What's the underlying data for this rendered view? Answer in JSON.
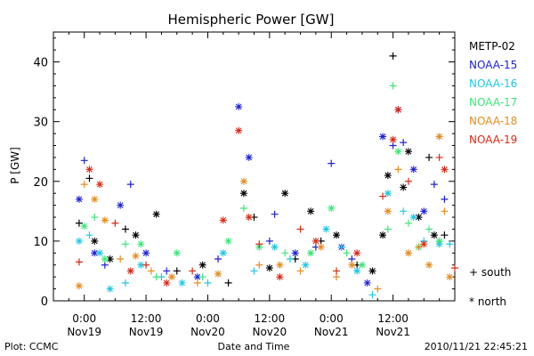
{
  "chart_data": {
    "type": "scatter",
    "title": "Hemispheric Power [GW]",
    "xlabel": "Date and Time",
    "ylabel": "P [GW]",
    "ylim": [
      0,
      45
    ],
    "yticks": [
      0,
      10,
      20,
      30,
      40
    ],
    "xlim_hours": [
      -6,
      72
    ],
    "xticks": [
      {
        "hour": 0,
        "time": "0:00",
        "date": "Nov19"
      },
      {
        "hour": 12,
        "time": "12:00",
        "date": "Nov19"
      },
      {
        "hour": 24,
        "time": "0:00",
        "date": "Nov20"
      },
      {
        "hour": 36,
        "time": "12:00",
        "date": "Nov20"
      },
      {
        "hour": 48,
        "time": "0:00",
        "date": "Nov21"
      },
      {
        "hour": 60,
        "time": "12:00",
        "date": "Nov21"
      }
    ],
    "legend": {
      "placement": "right",
      "marker_plus": "+ south",
      "marker_star": "* north"
    },
    "series": [
      {
        "name": "METP-02",
        "color": "#000000",
        "points": [
          [
            -1,
            13,
            "s"
          ],
          [
            1,
            20.5,
            "s"
          ],
          [
            2,
            10,
            "n"
          ],
          [
            5,
            7,
            "n"
          ],
          [
            8,
            12,
            "s"
          ],
          [
            10,
            11,
            "n"
          ],
          [
            14,
            14.5,
            "n"
          ],
          [
            18,
            5,
            "s"
          ],
          [
            23,
            6,
            "n"
          ],
          [
            28,
            3,
            "s"
          ],
          [
            31,
            18,
            "n"
          ],
          [
            33,
            14,
            "s"
          ],
          [
            36,
            5.5,
            "n"
          ],
          [
            39,
            18,
            "n"
          ],
          [
            41,
            7,
            "s"
          ],
          [
            44,
            15,
            "n"
          ],
          [
            46,
            10,
            "s"
          ],
          [
            49,
            11,
            "n"
          ],
          [
            53,
            6,
            "s"
          ],
          [
            56,
            5,
            "n"
          ],
          [
            58,
            11,
            "n"
          ],
          [
            59,
            21,
            "n"
          ],
          [
            60,
            41,
            "s"
          ],
          [
            62,
            19,
            "n"
          ],
          [
            63,
            25,
            "n"
          ],
          [
            65,
            14,
            "n"
          ],
          [
            67,
            24,
            "s"
          ],
          [
            68,
            11,
            "n"
          ],
          [
            70,
            11,
            "s"
          ]
        ]
      },
      {
        "name": "NOAA-15",
        "color": "#1e22d8",
        "points": [
          [
            -1,
            17,
            "n"
          ],
          [
            0,
            23.5,
            "s"
          ],
          [
            2,
            8,
            "n"
          ],
          [
            4,
            6,
            "s"
          ],
          [
            7,
            16,
            "n"
          ],
          [
            9,
            19.5,
            "s"
          ],
          [
            12,
            8,
            "n"
          ],
          [
            16,
            5,
            "s"
          ],
          [
            22,
            4,
            "n"
          ],
          [
            26,
            7,
            "s"
          ],
          [
            30,
            32.5,
            "n"
          ],
          [
            32,
            24,
            "n"
          ],
          [
            36,
            10,
            "s"
          ],
          [
            37,
            14.5,
            "s"
          ],
          [
            41,
            8,
            "n"
          ],
          [
            45,
            9,
            "s"
          ],
          [
            48,
            23,
            "s"
          ],
          [
            50,
            9,
            "n"
          ],
          [
            52,
            7,
            "s"
          ],
          [
            55,
            3,
            "n"
          ],
          [
            58,
            27.5,
            "n"
          ],
          [
            60,
            26,
            "s"
          ],
          [
            61,
            32,
            "n"
          ],
          [
            62,
            26.5,
            "s"
          ],
          [
            64,
            22,
            "n"
          ],
          [
            66,
            15,
            "n"
          ],
          [
            68,
            19.5,
            "s"
          ],
          [
            70,
            17,
            "s"
          ]
        ]
      },
      {
        "name": "NOAA-16",
        "color": "#1ec8e6",
        "points": [
          [
            -1,
            10,
            "n"
          ],
          [
            1,
            11,
            "s"
          ],
          [
            3,
            8,
            "n"
          ],
          [
            5,
            2,
            "n"
          ],
          [
            8,
            3,
            "s"
          ],
          [
            11,
            6,
            "n"
          ],
          [
            15,
            4,
            "s"
          ],
          [
            19,
            3,
            "n"
          ],
          [
            24,
            3,
            "s"
          ],
          [
            27,
            8,
            "n"
          ],
          [
            33,
            5,
            "s"
          ],
          [
            37,
            9,
            "n"
          ],
          [
            40,
            7,
            "s"
          ],
          [
            43,
            6,
            "n"
          ],
          [
            47,
            12,
            "n"
          ],
          [
            50,
            9,
            "s"
          ],
          [
            53,
            5,
            "n"
          ],
          [
            56,
            1,
            "s"
          ],
          [
            59,
            18,
            "n"
          ],
          [
            62,
            15,
            "s"
          ],
          [
            64,
            14,
            "n"
          ],
          [
            66,
            10,
            "s"
          ],
          [
            69,
            9.5,
            "n"
          ],
          [
            71,
            9.5,
            "s"
          ]
        ]
      },
      {
        "name": "NOAA-17",
        "color": "#3ce678",
        "points": [
          [
            0,
            12.5,
            "n"
          ],
          [
            2,
            14,
            "s"
          ],
          [
            4,
            7,
            "n"
          ],
          [
            8,
            9.5,
            "s"
          ],
          [
            11,
            9.5,
            "n"
          ],
          [
            14,
            4,
            "s"
          ],
          [
            18,
            8,
            "n"
          ],
          [
            23,
            4,
            "s"
          ],
          [
            28,
            10,
            "n"
          ],
          [
            31,
            15.5,
            "s"
          ],
          [
            34,
            9,
            "n"
          ],
          [
            39,
            8,
            "s"
          ],
          [
            44,
            8,
            "n"
          ],
          [
            48,
            15.5,
            "n"
          ],
          [
            51,
            8,
            "s"
          ],
          [
            54,
            6,
            "n"
          ],
          [
            59,
            12,
            "s"
          ],
          [
            60,
            36,
            "s"
          ],
          [
            61,
            25,
            "n"
          ],
          [
            63,
            13,
            "s"
          ],
          [
            65,
            9,
            "n"
          ],
          [
            67,
            12,
            "s"
          ],
          [
            69,
            10,
            "n"
          ]
        ]
      },
      {
        "name": "NOAA-18",
        "color": "#e68c1e",
        "points": [
          [
            -1,
            2.5,
            "n"
          ],
          [
            0,
            19.5,
            "s"
          ],
          [
            2,
            17,
            "n"
          ],
          [
            4,
            13.5,
            "n"
          ],
          [
            7,
            7,
            "s"
          ],
          [
            10,
            7.5,
            "n"
          ],
          [
            13,
            5,
            "s"
          ],
          [
            17,
            4,
            "n"
          ],
          [
            22,
            3,
            "s"
          ],
          [
            26,
            4.5,
            "n"
          ],
          [
            31,
            20,
            "n"
          ],
          [
            34,
            6,
            "s"
          ],
          [
            38,
            6,
            "n"
          ],
          [
            42,
            5,
            "s"
          ],
          [
            46,
            9,
            "n"
          ],
          [
            49,
            4,
            "s"
          ],
          [
            52,
            6,
            "n"
          ],
          [
            57,
            2,
            "s"
          ],
          [
            59,
            15,
            "n"
          ],
          [
            61,
            22,
            "s"
          ],
          [
            63,
            8,
            "n"
          ],
          [
            65,
            9,
            "s"
          ],
          [
            67,
            6,
            "n"
          ],
          [
            69,
            27.5,
            "n"
          ],
          [
            70,
            15,
            "s"
          ],
          [
            71,
            4,
            "n"
          ]
        ]
      },
      {
        "name": "NOAA-19",
        "color": "#dc2814",
        "points": [
          [
            -1,
            6.5,
            "s"
          ],
          [
            1,
            22,
            "n"
          ],
          [
            3,
            19.5,
            "n"
          ],
          [
            6,
            13,
            "s"
          ],
          [
            9,
            5,
            "n"
          ],
          [
            12,
            6,
            "s"
          ],
          [
            16,
            3,
            "n"
          ],
          [
            21,
            5,
            "s"
          ],
          [
            27,
            13.5,
            "n"
          ],
          [
            30,
            28.5,
            "n"
          ],
          [
            32,
            14,
            "n"
          ],
          [
            34,
            9.5,
            "s"
          ],
          [
            38,
            4,
            "n"
          ],
          [
            42,
            12,
            "s"
          ],
          [
            45,
            10,
            "n"
          ],
          [
            49,
            5,
            "s"
          ],
          [
            53,
            8,
            "n"
          ],
          [
            58,
            17.5,
            "s"
          ],
          [
            60,
            27,
            "n"
          ],
          [
            61,
            32,
            "n"
          ],
          [
            63,
            20,
            "s"
          ],
          [
            66,
            9.5,
            "n"
          ],
          [
            69,
            24,
            "s"
          ],
          [
            70,
            22,
            "n"
          ],
          [
            72,
            5.5,
            "s"
          ]
        ]
      }
    ]
  },
  "footer": {
    "left": "Plot: CCMC",
    "right": "2010/11/21  22:45:21"
  }
}
